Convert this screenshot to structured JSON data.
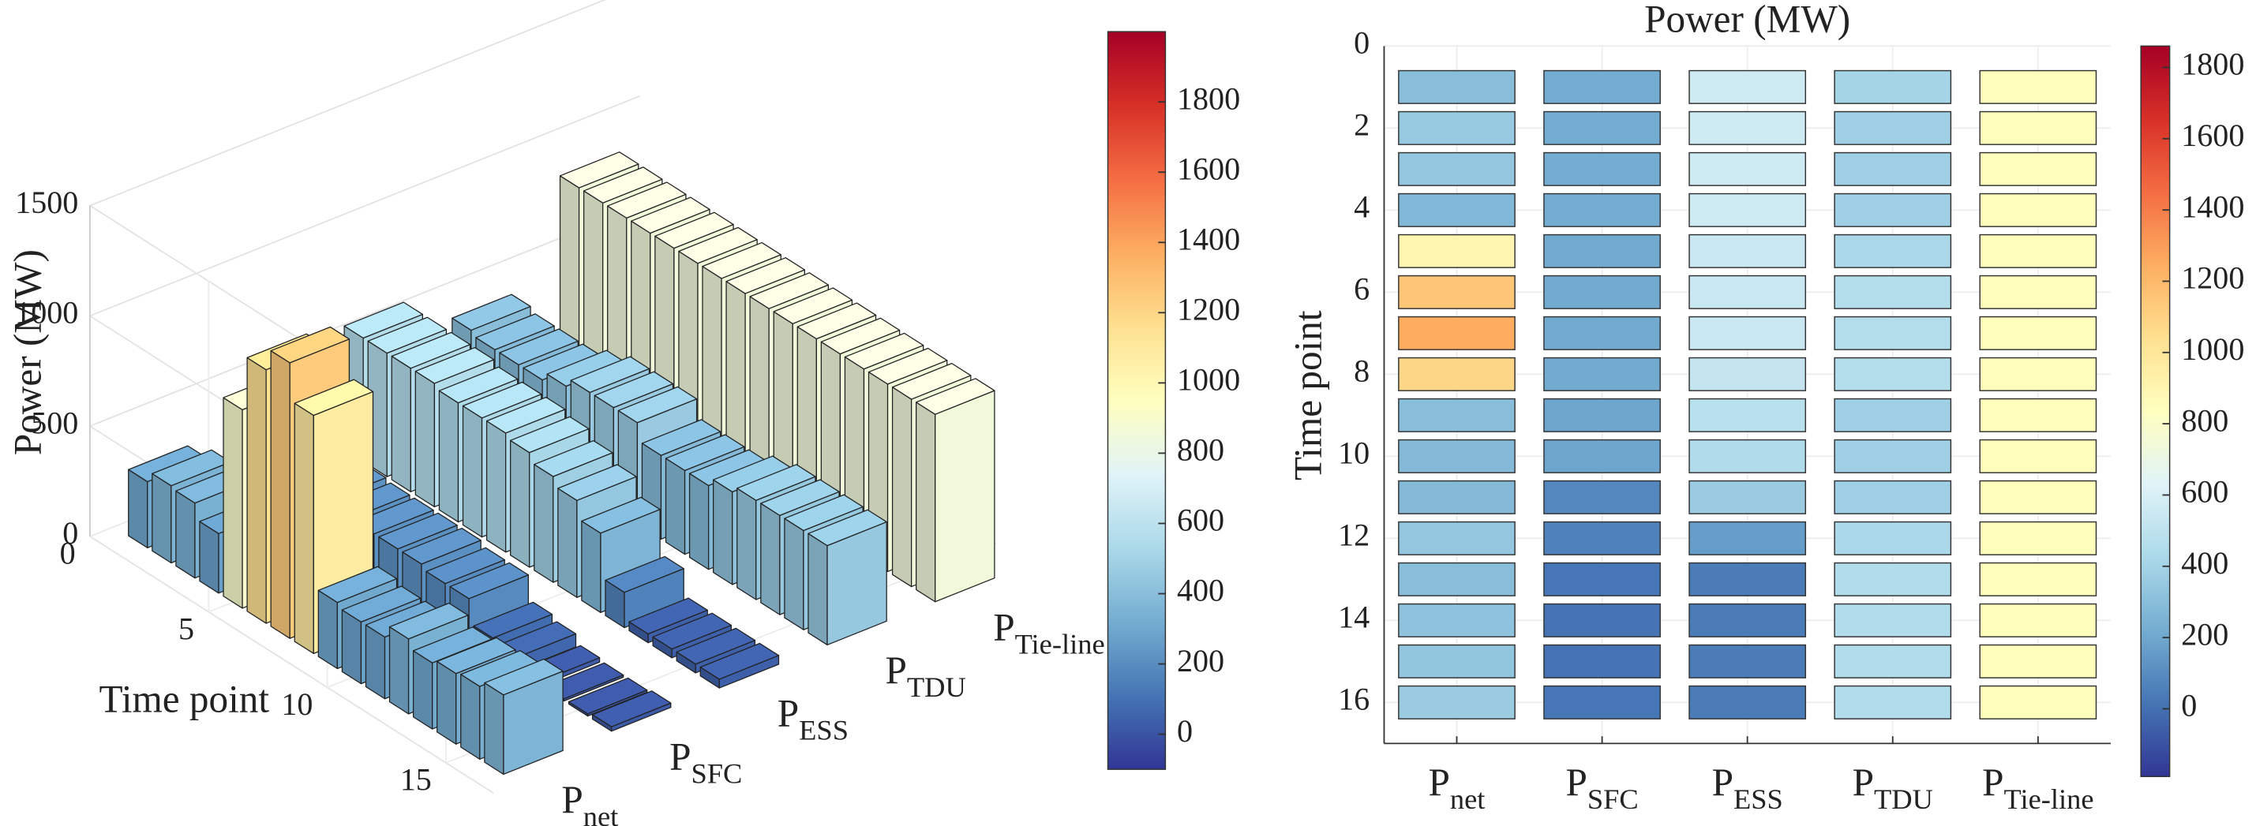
{
  "chart_data": [
    {
      "type": "bar3d",
      "zlabel": "Power (MW)",
      "xlabel": "Time point",
      "x": [
        1,
        2,
        3,
        4,
        5,
        6,
        7,
        8,
        9,
        10,
        11,
        12,
        13,
        14,
        15,
        16
      ],
      "categories": [
        {
          "base": "P",
          "sub": "net"
        },
        {
          "base": "P",
          "sub": "SFC"
        },
        {
          "base": "P",
          "sub": "ESS"
        },
        {
          "base": "P",
          "sub": "TDU"
        },
        {
          "base": "P",
          "sub": "Tie-line"
        }
      ],
      "z": [
        [
          300,
          220,
          560,
          400,
          850
        ],
        [
          350,
          220,
          560,
          380,
          850
        ],
        [
          340,
          220,
          560,
          380,
          850
        ],
        [
          270,
          220,
          560,
          380,
          850
        ],
        [
          900,
          210,
          540,
          420,
          850
        ],
        [
          1150,
          210,
          540,
          460,
          850
        ],
        [
          1250,
          210,
          540,
          460,
          850
        ],
        [
          1080,
          210,
          520,
          460,
          850
        ],
        [
          300,
          190,
          480,
          380,
          850
        ],
        [
          280,
          190,
          440,
          380,
          850
        ],
        [
          280,
          80,
          360,
          380,
          850
        ],
        [
          340,
          60,
          160,
          420,
          850
        ],
        [
          300,
          20,
          40,
          450,
          850
        ],
        [
          320,
          10,
          40,
          450,
          850
        ],
        [
          330,
          10,
          40,
          450,
          850
        ],
        [
          360,
          20,
          40,
          450,
          850
        ]
      ],
      "xlim": [
        0,
        17
      ],
      "xticks": [
        0,
        5,
        10,
        15
      ],
      "zlim": [
        0,
        1500
      ],
      "zticks": [
        0,
        500,
        1000,
        1500
      ],
      "clim": [
        -100,
        2000
      ],
      "cticks": [
        0,
        200,
        400,
        600,
        800,
        1000,
        1200,
        1400,
        1600,
        1800
      ],
      "colormap": [
        "#313695",
        "#4575b4",
        "#74add1",
        "#abd9e9",
        "#e0f3f8",
        "#ffffbf",
        "#fee090",
        "#fdae61",
        "#f46d43",
        "#d73027",
        "#a50026"
      ],
      "grid": true
    },
    {
      "type": "heatmap",
      "title": "Power (MW)",
      "ylabel": "Time point",
      "x": [
        1,
        2,
        3,
        4,
        5,
        6,
        7,
        8,
        9,
        10,
        11,
        12,
        13,
        14,
        15,
        16
      ],
      "categories": [
        {
          "base": "P",
          "sub": "net"
        },
        {
          "base": "P",
          "sub": "SFC"
        },
        {
          "base": "P",
          "sub": "ESS"
        },
        {
          "base": "P",
          "sub": "TDU"
        },
        {
          "base": "P",
          "sub": "Tie-line"
        }
      ],
      "z": [
        [
          300,
          220,
          560,
          400,
          850
        ],
        [
          350,
          220,
          560,
          380,
          850
        ],
        [
          340,
          220,
          560,
          380,
          850
        ],
        [
          270,
          220,
          560,
          380,
          850
        ],
        [
          900,
          210,
          540,
          420,
          850
        ],
        [
          1150,
          210,
          540,
          460,
          850
        ],
        [
          1250,
          210,
          540,
          460,
          850
        ],
        [
          1080,
          210,
          520,
          460,
          850
        ],
        [
          300,
          190,
          480,
          380,
          850
        ],
        [
          280,
          190,
          440,
          380,
          850
        ],
        [
          280,
          80,
          360,
          380,
          850
        ],
        [
          340,
          60,
          160,
          420,
          850
        ],
        [
          300,
          20,
          40,
          450,
          850
        ],
        [
          320,
          10,
          40,
          450,
          850
        ],
        [
          330,
          10,
          40,
          450,
          850
        ],
        [
          360,
          20,
          40,
          450,
          850
        ]
      ],
      "ylim": [
        0,
        17
      ],
      "yticks": [
        0,
        2,
        4,
        6,
        8,
        10,
        12,
        14,
        16
      ],
      "clim": [
        -190,
        1860
      ],
      "cticks": [
        0,
        200,
        400,
        600,
        800,
        1000,
        1200,
        1400,
        1600,
        1800
      ],
      "colormap": [
        "#313695",
        "#4575b4",
        "#74add1",
        "#abd9e9",
        "#e0f3f8",
        "#ffffbf",
        "#fee090",
        "#fdae61",
        "#f46d43",
        "#d73027",
        "#a50026"
      ],
      "grid": true
    }
  ]
}
